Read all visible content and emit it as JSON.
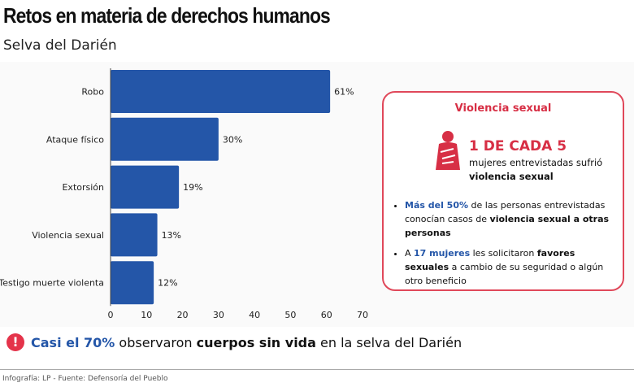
{
  "header": {
    "title": "Retos en materia de derechos humanos",
    "subtitle": "Selva del Darién"
  },
  "chart_data": {
    "type": "bar",
    "orientation": "horizontal",
    "categories": [
      "Robo",
      "Ataque físico",
      "Extorsión",
      "Violencia sexual",
      "Testigo muerte violenta"
    ],
    "values": [
      61,
      30,
      19,
      13,
      12
    ],
    "labels": [
      "61%",
      "30%",
      "19%",
      "13%",
      "12%"
    ],
    "xlim": [
      0,
      70
    ],
    "ticks": [
      0,
      10,
      20,
      30,
      40,
      50,
      60,
      70
    ],
    "grid": false,
    "color": "#2456a8"
  },
  "card": {
    "title": "Violencia sexual",
    "big": "1 DE CADA 5",
    "sub1": "mujeres entrevistadas sufrió",
    "sub2": "violencia sexual",
    "b1": {
      "hl": "Más del 50%",
      "t1": " de las personas entrevistadas conocían casos de ",
      "bold": "violencia sexual a otras personas"
    },
    "b2": {
      "t0": "A ",
      "hl": "17 mujeres",
      "t1": " les solicitaron ",
      "bold": "favores sexuales",
      "t2": " a cambio de su seguridad o algún otro beneficio"
    },
    "icon": "woman-covering-body-icon",
    "accent": "#d72f45"
  },
  "callout": {
    "icon": "exclamation-icon",
    "hl": "Casi el 70%",
    "t1": " observaron ",
    "bold": "cuerpos sin vida",
    "t2": " en la selva del Darién"
  },
  "footer": {
    "credit": "Infografía: LP - Fuente: Defensoría del Pueblo"
  }
}
